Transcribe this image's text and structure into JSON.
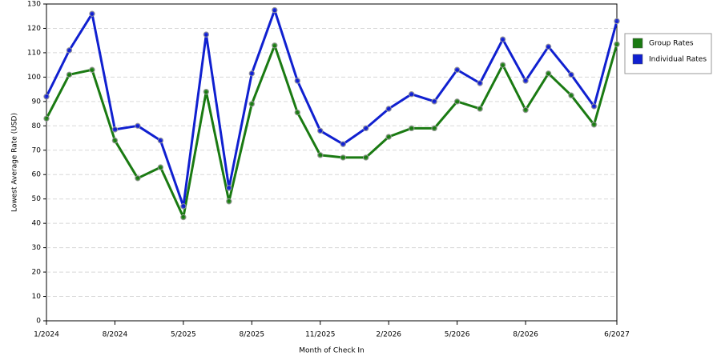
{
  "chart_data": {
    "type": "line",
    "x_label": "Month of Check In",
    "y_label": "Lowest Average Rate (USD)",
    "categories": [
      "1/2024",
      null,
      null,
      "8/2024",
      null,
      null,
      "5/2025",
      null,
      null,
      "8/2025",
      null,
      null,
      "11/2025",
      null,
      null,
      "2/2026",
      null,
      null,
      "5/2026",
      null,
      null,
      "8/2026",
      null,
      null,
      null,
      "6/2027"
    ],
    "series": [
      {
        "name": "Group Rates",
        "color": "#1a7a12",
        "values": [
          83,
          101,
          103,
          74,
          58.5,
          63,
          42.5,
          94,
          49,
          89,
          113,
          85.5,
          68,
          67,
          67,
          75.5,
          79,
          79,
          90,
          87,
          105,
          86.5,
          101.5,
          92.5,
          80.5,
          113.5
        ]
      },
      {
        "name": "Individual Rates",
        "color": "#1020d0",
        "values": [
          92,
          111,
          126,
          78.5,
          80,
          74,
          47,
          117.5,
          54.5,
          101.5,
          127.5,
          98.5,
          78,
          72.5,
          79,
          87,
          93,
          90,
          103,
          97.5,
          115.5,
          98.5,
          112.5,
          101,
          88,
          123
        ]
      }
    ],
    "ylim": [
      0,
      130
    ],
    "yticks": [
      0,
      10,
      20,
      30,
      40,
      50,
      60,
      70,
      80,
      90,
      100,
      110,
      120,
      130
    ],
    "grid": true,
    "legend": "right"
  }
}
